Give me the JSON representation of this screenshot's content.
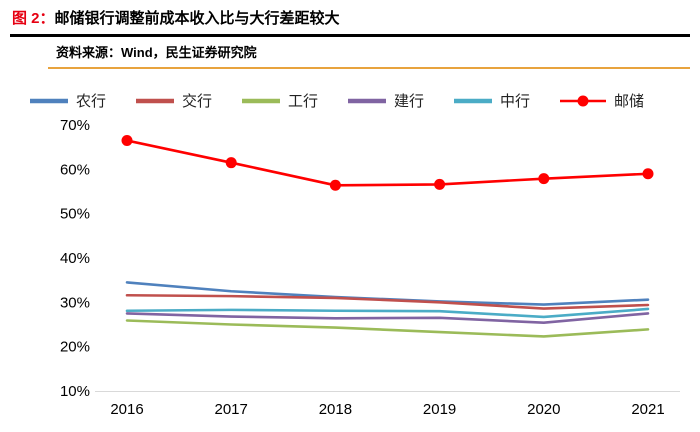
{
  "header": {
    "figure_label": "图 2：",
    "title": "邮储银行调整前成本收入比与大行差距较大",
    "source": "资料来源：Wind，民生证券研究院"
  },
  "colors": {
    "figure_label_red": "#e60012",
    "title_rule_black": "#000000",
    "source_rule_orange": "#e8a33d",
    "axis_text": "#000000",
    "legend_text": "#222222"
  },
  "chart_data": {
    "type": "line",
    "categories": [
      "2016",
      "2017",
      "2018",
      "2019",
      "2020",
      "2021"
    ],
    "series": [
      {
        "name": "农行",
        "color": "#4f81bd",
        "marker": false,
        "values": [
          34.5,
          32.5,
          31.2,
          30.2,
          29.5,
          30.6
        ]
      },
      {
        "name": "交行",
        "color": "#c0504d",
        "marker": false,
        "values": [
          31.6,
          31.4,
          31.0,
          30.0,
          28.6,
          29.4
        ]
      },
      {
        "name": "工行",
        "color": "#9bbb59",
        "marker": false,
        "values": [
          25.9,
          25.0,
          24.3,
          23.3,
          22.3,
          23.9
        ]
      },
      {
        "name": "建行",
        "color": "#8064a2",
        "marker": false,
        "values": [
          27.5,
          26.8,
          26.4,
          26.5,
          25.4,
          27.5
        ]
      },
      {
        "name": "中行",
        "color": "#4bacc6",
        "marker": false,
        "values": [
          28.1,
          28.3,
          28.1,
          28.0,
          26.7,
          28.5
        ]
      },
      {
        "name": "邮储",
        "color": "#ff0000",
        "marker": true,
        "values": [
          66.5,
          61.5,
          56.4,
          56.6,
          57.9,
          59.0
        ]
      }
    ],
    "ylim": [
      10,
      70
    ],
    "ytick_values": [
      70,
      60,
      50,
      40,
      30,
      20,
      10
    ],
    "yticks": [
      "70%",
      "60%",
      "50%",
      "40%",
      "30%",
      "20%",
      "10%"
    ],
    "xlabel": "",
    "ylabel": "",
    "legend_position": "top",
    "grid": false
  }
}
